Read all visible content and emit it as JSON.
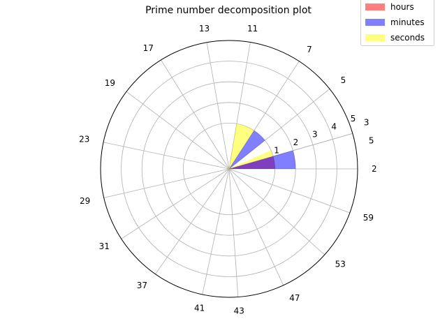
{
  "chart_data": {
    "type": "polar-bar",
    "title": "Prime number decomposition plot",
    "angular_tick_labels": [
      "2",
      "3",
      "5",
      "5",
      "7",
      "11",
      "13",
      "17",
      "19",
      "23",
      "29",
      "31",
      "37",
      "41",
      "43",
      "47",
      "53",
      "59"
    ],
    "radial_tick_labels": [
      "1",
      "2",
      "3",
      "4",
      "5"
    ],
    "rlim": [
      0,
      5
    ],
    "grid": true,
    "legend_position": "top-right",
    "series": [
      {
        "name": "hours",
        "color": "#ff0000",
        "alpha": 0.5,
        "bars": [
          {
            "start_tick": 0,
            "end_tick": 1,
            "value": 1
          }
        ]
      },
      {
        "name": "minutes",
        "color": "#0000ff",
        "alpha": 0.5,
        "bars": [
          {
            "start_tick": 0,
            "end_tick": 1,
            "value": 2
          },
          {
            "start_tick": 3,
            "end_tick": 4,
            "value": 1
          }
        ]
      },
      {
        "name": "seconds",
        "color": "#ffff00",
        "alpha": 0.5,
        "bars": [
          {
            "start_tick": 1,
            "end_tick": 2,
            "value": 1
          },
          {
            "start_tick": 4,
            "end_tick": 5,
            "value": 1
          }
        ]
      }
    ]
  }
}
